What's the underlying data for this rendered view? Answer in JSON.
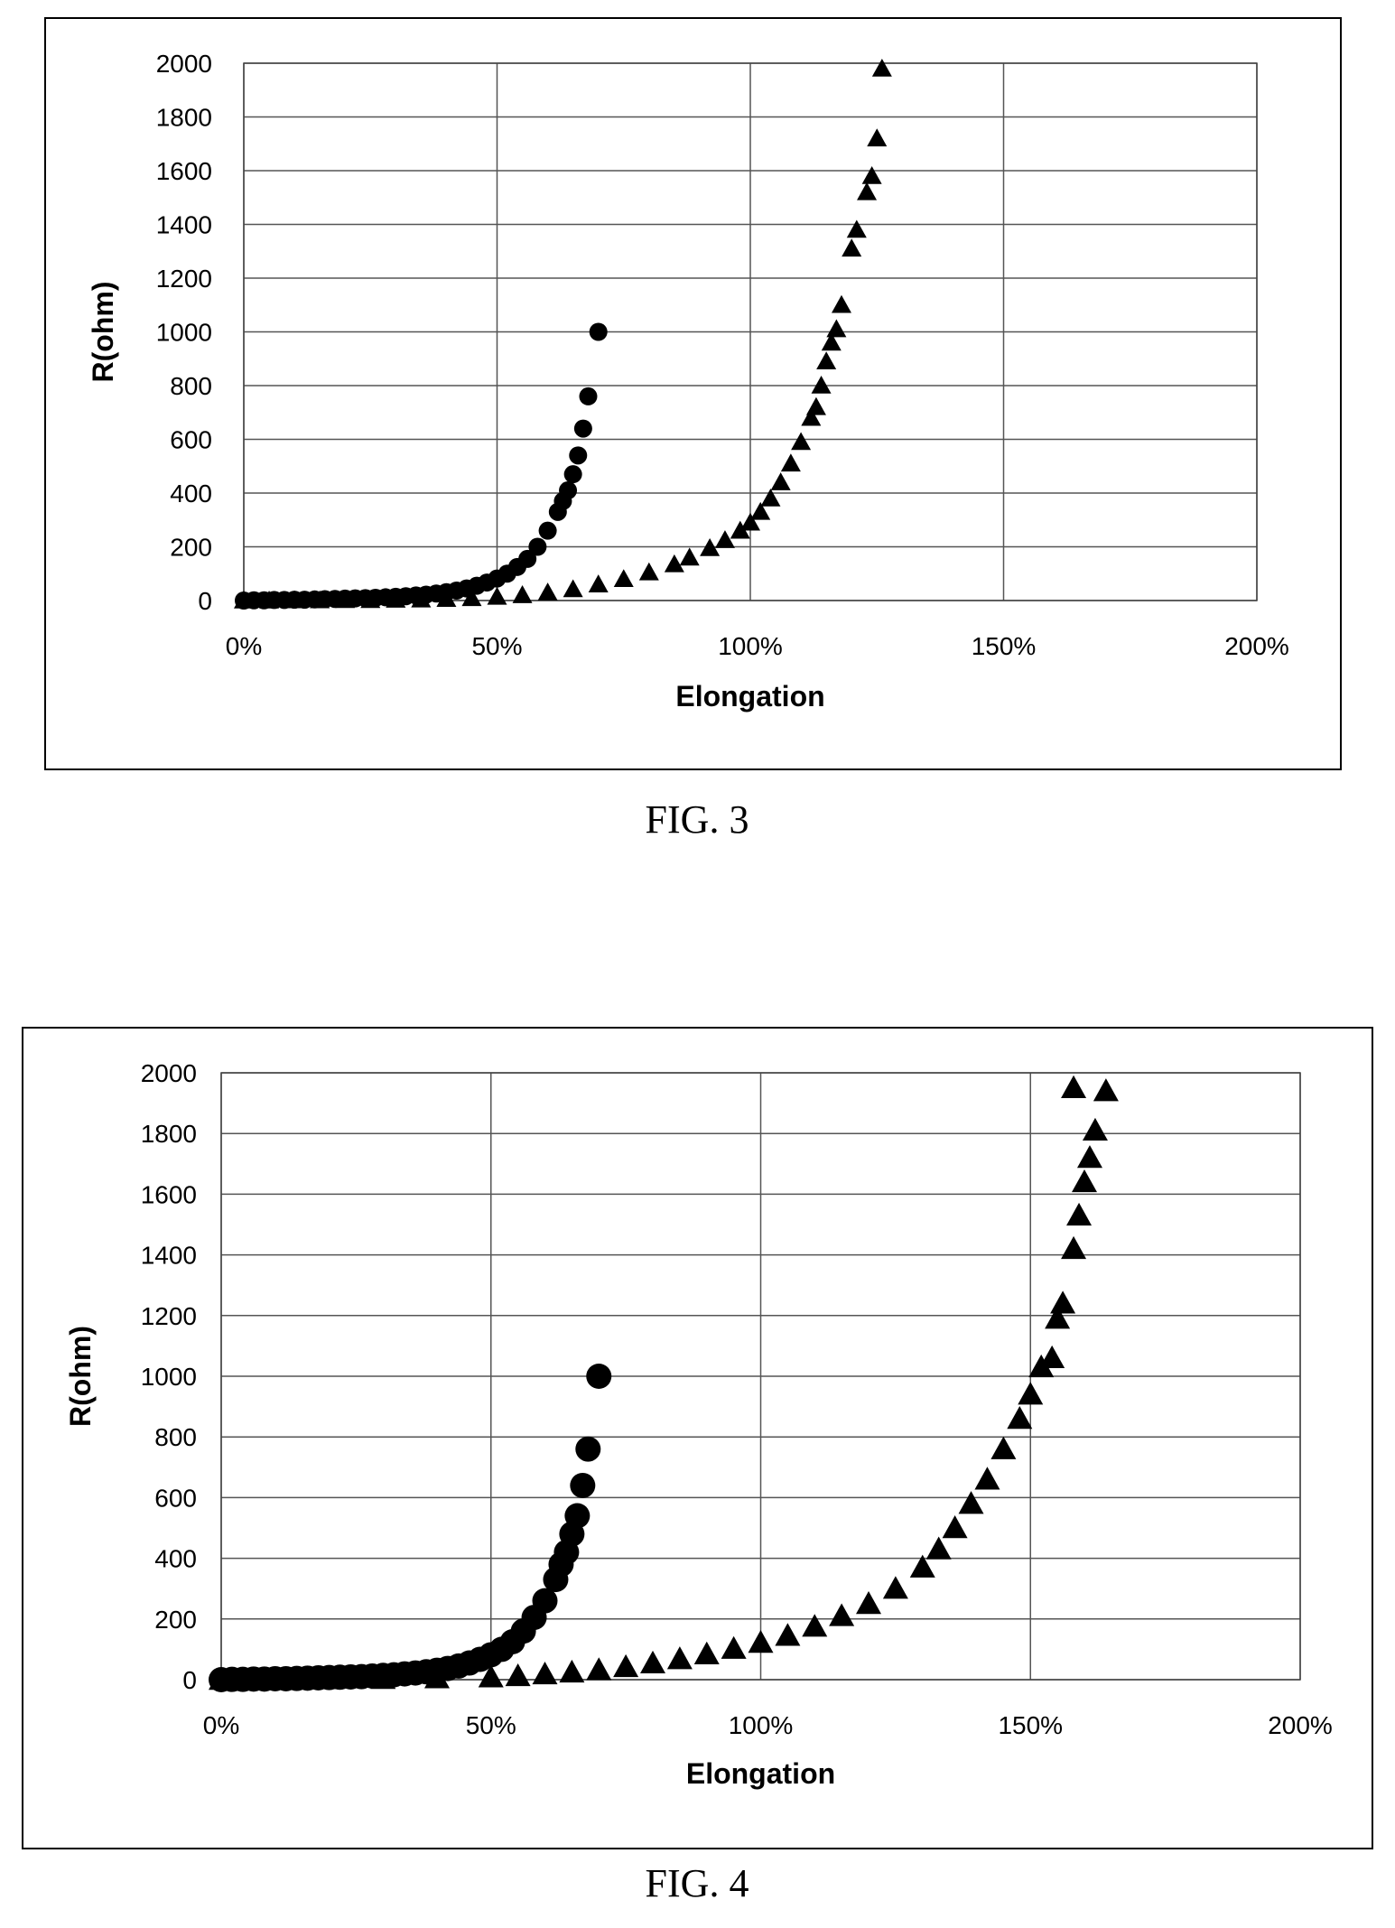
{
  "figures": [
    {
      "caption": "FIG. 3"
    },
    {
      "caption": "FIG. 4"
    }
  ],
  "chart_data": [
    {
      "type": "scatter",
      "title": "",
      "xlabel": "Elongation",
      "ylabel": "R(ohm)",
      "xlim": [
        0,
        2.0
      ],
      "ylim": [
        0,
        2000
      ],
      "x_tick_labels": [
        "0%",
        "50%",
        "100%",
        "150%",
        "200%"
      ],
      "y_tick_labels": [
        "0",
        "200",
        "400",
        "600",
        "800",
        "1000",
        "1200",
        "1400",
        "1600",
        "1800",
        "2000"
      ],
      "grid": true,
      "series": [
        {
          "marker": "circle",
          "points": [
            [
              0.0,
              0
            ],
            [
              0.02,
              1
            ],
            [
              0.04,
              1
            ],
            [
              0.06,
              2
            ],
            [
              0.08,
              2
            ],
            [
              0.1,
              3
            ],
            [
              0.12,
              3
            ],
            [
              0.14,
              4
            ],
            [
              0.16,
              5
            ],
            [
              0.18,
              6
            ],
            [
              0.2,
              7
            ],
            [
              0.22,
              8
            ],
            [
              0.24,
              9
            ],
            [
              0.26,
              10
            ],
            [
              0.28,
              12
            ],
            [
              0.3,
              14
            ],
            [
              0.32,
              16
            ],
            [
              0.34,
              19
            ],
            [
              0.36,
              22
            ],
            [
              0.38,
              26
            ],
            [
              0.4,
              31
            ],
            [
              0.42,
              37
            ],
            [
              0.44,
              45
            ],
            [
              0.46,
              55
            ],
            [
              0.48,
              67
            ],
            [
              0.5,
              82
            ],
            [
              0.52,
              100
            ],
            [
              0.54,
              125
            ],
            [
              0.56,
              155
            ],
            [
              0.58,
              200
            ],
            [
              0.6,
              260
            ],
            [
              0.62,
              330
            ],
            [
              0.63,
              370
            ],
            [
              0.64,
              410
            ],
            [
              0.65,
              470
            ],
            [
              0.66,
              540
            ],
            [
              0.67,
              640
            ],
            [
              0.68,
              760
            ],
            [
              0.7,
              1000
            ]
          ]
        },
        {
          "marker": "triangle",
          "points": [
            [
              0.0,
              0
            ],
            [
              0.05,
              0
            ],
            [
              0.1,
              1
            ],
            [
              0.15,
              1
            ],
            [
              0.2,
              2
            ],
            [
              0.25,
              2
            ],
            [
              0.3,
              3
            ],
            [
              0.35,
              4
            ],
            [
              0.4,
              6
            ],
            [
              0.45,
              9
            ],
            [
              0.5,
              14
            ],
            [
              0.55,
              20
            ],
            [
              0.6,
              30
            ],
            [
              0.65,
              42
            ],
            [
              0.7,
              60
            ],
            [
              0.75,
              80
            ],
            [
              0.8,
              105
            ],
            [
              0.85,
              135
            ],
            [
              0.88,
              160
            ],
            [
              0.92,
              195
            ],
            [
              0.95,
              225
            ],
            [
              0.98,
              260
            ],
            [
              1.0,
              290
            ],
            [
              1.02,
              330
            ],
            [
              1.04,
              380
            ],
            [
              1.06,
              440
            ],
            [
              1.08,
              510
            ],
            [
              1.1,
              590
            ],
            [
              1.12,
              680
            ],
            [
              1.13,
              720
            ],
            [
              1.14,
              800
            ],
            [
              1.15,
              890
            ],
            [
              1.16,
              960
            ],
            [
              1.17,
              1010
            ],
            [
              1.18,
              1100
            ],
            [
              1.2,
              1310
            ],
            [
              1.21,
              1380
            ],
            [
              1.23,
              1520
            ],
            [
              1.24,
              1580
            ],
            [
              1.25,
              1720
            ],
            [
              1.26,
              1980
            ]
          ]
        }
      ]
    },
    {
      "type": "scatter",
      "title": "",
      "xlabel": "Elongation",
      "ylabel": "R(ohm)",
      "xlim": [
        0,
        2.0
      ],
      "ylim": [
        0,
        2000
      ],
      "x_tick_labels": [
        "0%",
        "50%",
        "100%",
        "150%",
        "200%"
      ],
      "y_tick_labels": [
        "0",
        "200",
        "400",
        "600",
        "800",
        "1000",
        "1200",
        "1400",
        "1600",
        "1800",
        "2000"
      ],
      "grid": true,
      "series": [
        {
          "marker": "circle",
          "points": [
            [
              0.0,
              0
            ],
            [
              0.02,
              1
            ],
            [
              0.04,
              1
            ],
            [
              0.06,
              2
            ],
            [
              0.08,
              2
            ],
            [
              0.1,
              3
            ],
            [
              0.12,
              3
            ],
            [
              0.14,
              4
            ],
            [
              0.16,
              5
            ],
            [
              0.18,
              6
            ],
            [
              0.2,
              7
            ],
            [
              0.22,
              8
            ],
            [
              0.24,
              9
            ],
            [
              0.26,
              10
            ],
            [
              0.28,
              12
            ],
            [
              0.3,
              14
            ],
            [
              0.32,
              16
            ],
            [
              0.34,
              19
            ],
            [
              0.36,
              22
            ],
            [
              0.38,
              26
            ],
            [
              0.4,
              31
            ],
            [
              0.42,
              37
            ],
            [
              0.44,
              45
            ],
            [
              0.46,
              55
            ],
            [
              0.48,
              67
            ],
            [
              0.5,
              82
            ],
            [
              0.52,
              100
            ],
            [
              0.54,
              125
            ],
            [
              0.56,
              160
            ],
            [
              0.58,
              205
            ],
            [
              0.6,
              260
            ],
            [
              0.62,
              330
            ],
            [
              0.63,
              380
            ],
            [
              0.64,
              420
            ],
            [
              0.65,
              480
            ],
            [
              0.66,
              540
            ],
            [
              0.67,
              640
            ],
            [
              0.68,
              760
            ],
            [
              0.7,
              1000
            ]
          ]
        },
        {
          "marker": "triangle",
          "points": [
            [
              0.0,
              0
            ],
            [
              0.1,
              1
            ],
            [
              0.2,
              2
            ],
            [
              0.3,
              3
            ],
            [
              0.4,
              5
            ],
            [
              0.5,
              8
            ],
            [
              0.55,
              12
            ],
            [
              0.6,
              18
            ],
            [
              0.65,
              24
            ],
            [
              0.7,
              32
            ],
            [
              0.75,
              42
            ],
            [
              0.8,
              54
            ],
            [
              0.85,
              68
            ],
            [
              0.9,
              84
            ],
            [
              0.95,
              102
            ],
            [
              1.0,
              122
            ],
            [
              1.05,
              145
            ],
            [
              1.1,
              175
            ],
            [
              1.15,
              210
            ],
            [
              1.2,
              250
            ],
            [
              1.25,
              300
            ],
            [
              1.3,
              370
            ],
            [
              1.33,
              430
            ],
            [
              1.36,
              500
            ],
            [
              1.39,
              580
            ],
            [
              1.42,
              660
            ],
            [
              1.45,
              760
            ],
            [
              1.48,
              860
            ],
            [
              1.5,
              940
            ],
            [
              1.52,
              1030
            ],
            [
              1.54,
              1060
            ],
            [
              1.55,
              1190
            ],
            [
              1.56,
              1240
            ],
            [
              1.58,
              1420
            ],
            [
              1.59,
              1530
            ],
            [
              1.6,
              1640
            ],
            [
              1.61,
              1720
            ],
            [
              1.62,
              1810
            ],
            [
              1.58,
              1950
            ],
            [
              1.64,
              1940
            ]
          ]
        }
      ]
    }
  ]
}
